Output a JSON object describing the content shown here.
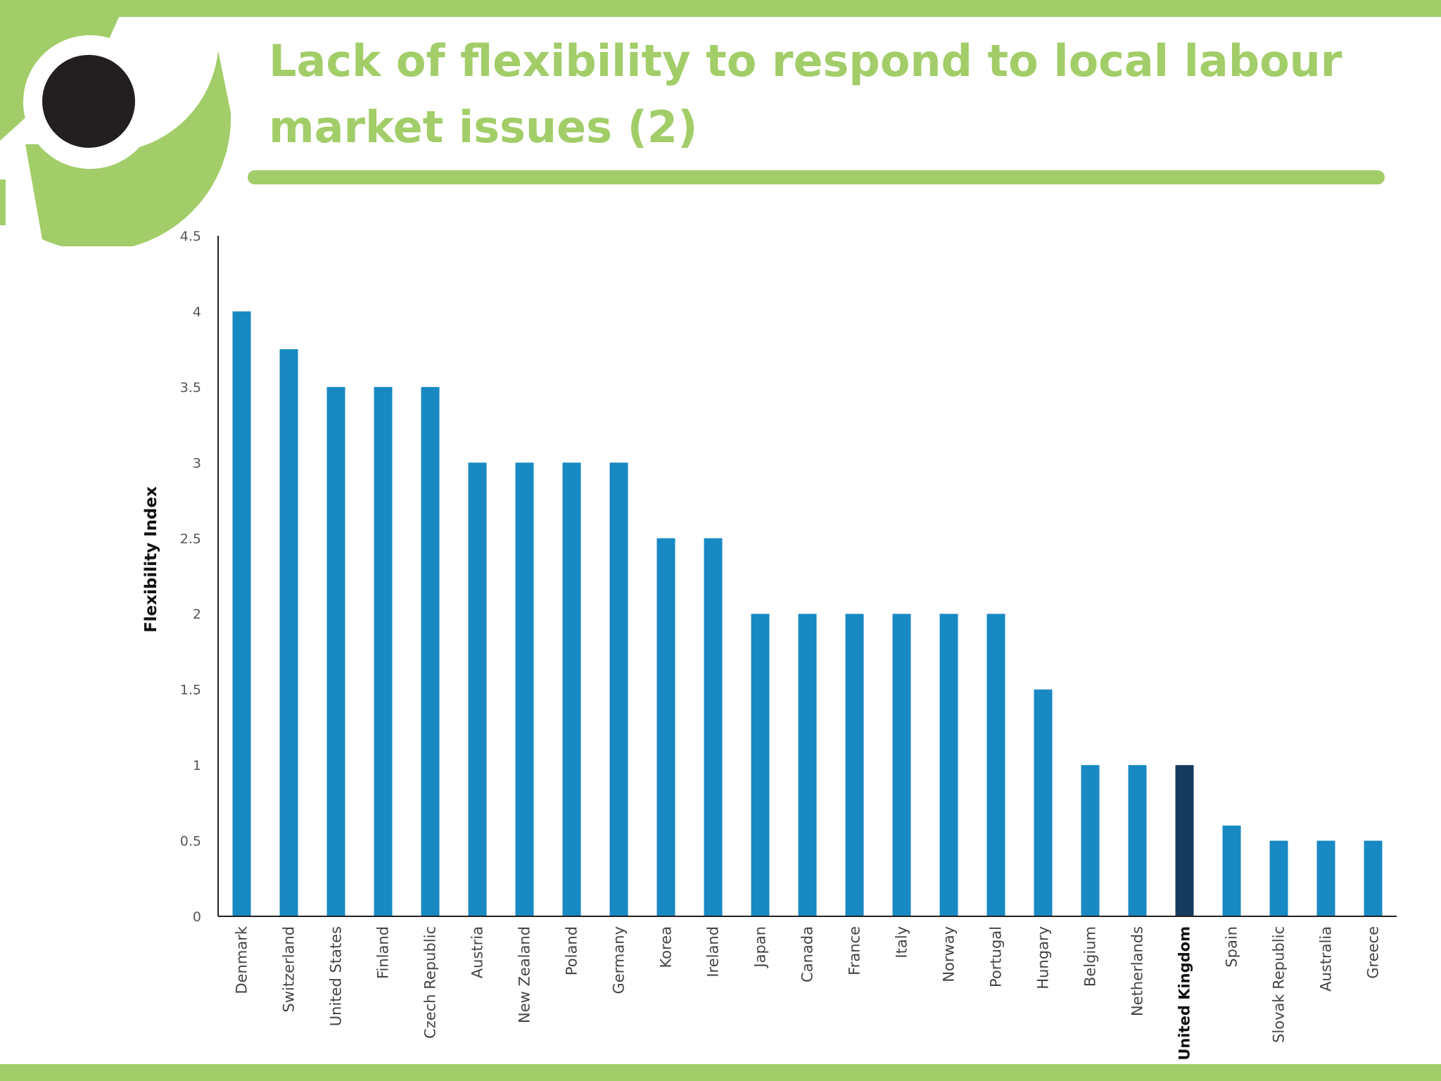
{
  "slide": {
    "title": "Lack of flexibility to respond to local labour market issues (2)",
    "accent_color": "#a2cd68",
    "logo_dot_color": "#231f20"
  },
  "chart_data": {
    "type": "bar",
    "ylabel": "Flexibility Index",
    "ylim": [
      0,
      4.5
    ],
    "yticks": [
      "0",
      "0.5",
      "1",
      "1.5",
      "2",
      "2.5",
      "3",
      "3.5",
      "4",
      "4.5"
    ],
    "categories": [
      "Denmark",
      "Switzerland",
      "United States",
      "Finland",
      "Czech Republic",
      "Austria",
      "New Zealand",
      "Poland",
      "Germany",
      "Korea",
      "Ireland",
      "Japan",
      "Canada",
      "France",
      "Italy",
      "Norway",
      "Portugal",
      "Hungary",
      "Belgium",
      "Netherlands",
      "United Kingdom",
      "Spain",
      "Slovak Republic",
      "Australia",
      "Greece"
    ],
    "values": [
      4,
      3.75,
      3.5,
      3.5,
      3.5,
      3,
      3,
      3,
      3,
      2.5,
      2.5,
      2,
      2,
      2,
      2,
      2,
      2,
      1.5,
      1,
      1,
      1,
      0.6,
      0.5,
      0.5,
      0.5
    ],
    "highlight": "United Kingdom",
    "bar_color": "#1889c3",
    "highlight_color": "#163a5e",
    "grid": false,
    "legend": "none"
  }
}
